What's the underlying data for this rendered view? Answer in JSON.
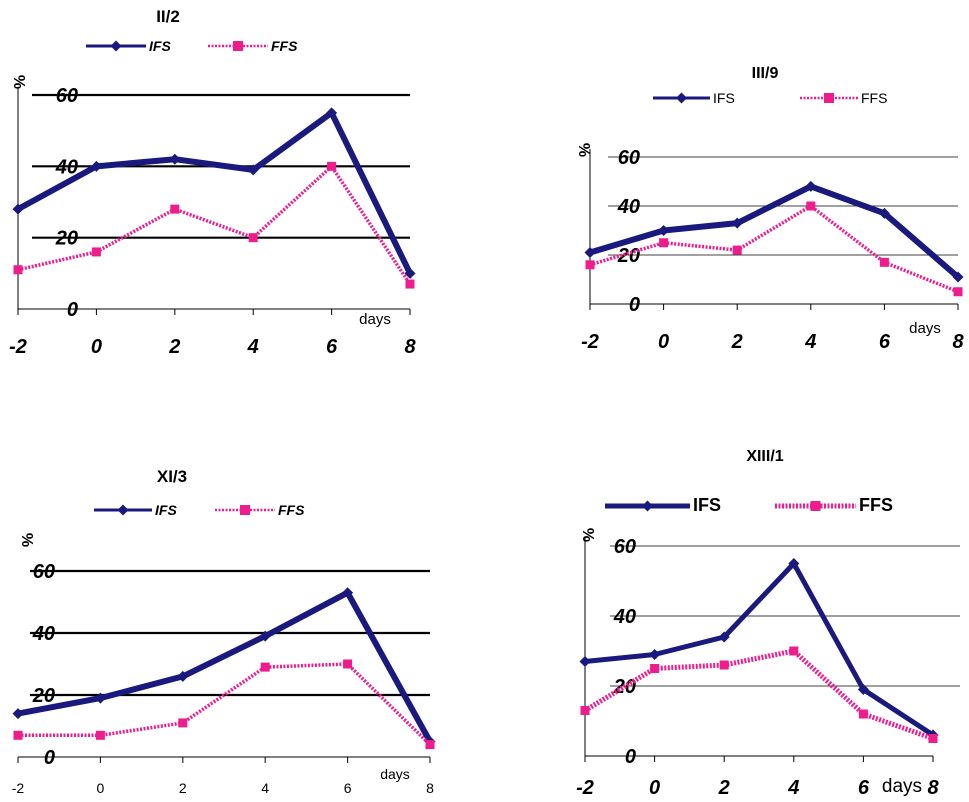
{
  "colors": {
    "ifs": "#1a1a7e",
    "ffs": "#ee1c8c",
    "grid": "#000000"
  },
  "chart_data": [
    {
      "type": "line",
      "title": "II/2",
      "xlabel": "days",
      "ylabel": "%",
      "x": [
        -2,
        0,
        2,
        4,
        6,
        8
      ],
      "yticks": [
        0,
        20,
        40,
        60
      ],
      "ylim": [
        0,
        60
      ],
      "grid": "horizontal",
      "legend": "top",
      "series": [
        {
          "name": "IFS",
          "values": [
            28,
            40,
            42,
            39,
            55,
            10
          ]
        },
        {
          "name": "FFS",
          "values": [
            11,
            16,
            28,
            20,
            40,
            7
          ]
        }
      ]
    },
    {
      "type": "line",
      "title": "III/9",
      "xlabel": "days",
      "ylabel": "%",
      "x": [
        -2,
        0,
        2,
        4,
        6,
        8
      ],
      "yticks": [
        0,
        20,
        40,
        60
      ],
      "ylim": [
        0,
        60
      ],
      "grid": "horizontal",
      "legend": "top",
      "series": [
        {
          "name": "IFS",
          "values": [
            21,
            30,
            33,
            48,
            37,
            11
          ]
        },
        {
          "name": "FFS",
          "values": [
            16,
            25,
            22,
            40,
            17,
            5
          ]
        }
      ]
    },
    {
      "type": "line",
      "title": "XI/3",
      "xlabel": "days",
      "ylabel": "%",
      "x": [
        -2,
        0,
        2,
        4,
        6,
        8
      ],
      "yticks": [
        0,
        20,
        40,
        60
      ],
      "ylim": [
        0,
        60
      ],
      "grid": "horizontal",
      "legend": "top",
      "series": [
        {
          "name": "IFS",
          "values": [
            14,
            19,
            26,
            39,
            53,
            5
          ]
        },
        {
          "name": "FFS",
          "values": [
            7,
            7,
            11,
            29,
            30,
            4
          ]
        }
      ]
    },
    {
      "type": "line",
      "title": "XIII/1",
      "xlabel": "days",
      "ylabel": "%",
      "x": [
        -2,
        0,
        2,
        4,
        6,
        8
      ],
      "yticks": [
        0,
        20,
        40,
        60
      ],
      "ylim": [
        0,
        60
      ],
      "grid": "horizontal",
      "legend": "top",
      "series": [
        {
          "name": "IFS",
          "values": [
            27,
            29,
            34,
            55,
            19,
            6
          ]
        },
        {
          "name": "FFS",
          "values": [
            13,
            25,
            26,
            30,
            12,
            5
          ]
        }
      ]
    }
  ]
}
